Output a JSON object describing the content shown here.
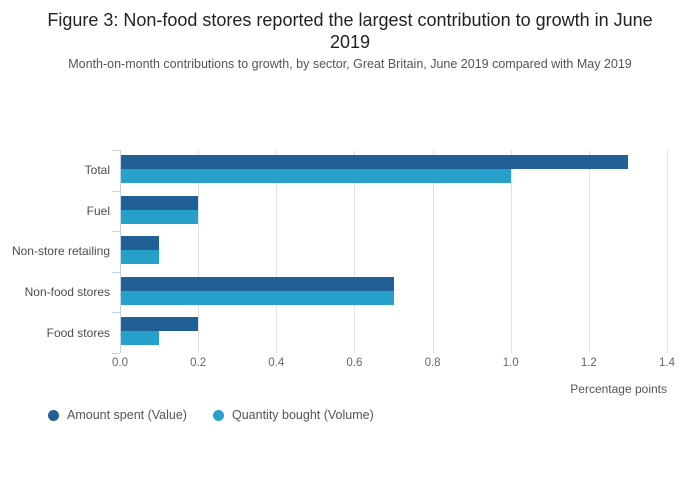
{
  "chart_data": {
    "type": "bar",
    "orientation": "horizontal",
    "title": "Figure 3: Non-food stores reported the largest contribution to growth in June 2019",
    "subtitle": "Month-on-month contributions to growth, by sector, Great Britain, June 2019 compared with May 2019",
    "categories": [
      "Total",
      "Fuel",
      "Non-store retailing",
      "Non-food stores",
      "Food stores"
    ],
    "series": [
      {
        "name": "Amount spent (Value)",
        "color": "#206095",
        "values": [
          1.3,
          0.2,
          0.1,
          0.7,
          0.2
        ]
      },
      {
        "name": "Quantity bought (Volume)",
        "color": "#27a0cc",
        "values": [
          1.0,
          0.2,
          0.1,
          0.7,
          0.1
        ]
      }
    ],
    "xlabel": "Percentage points",
    "xlim": [
      0,
      1.4
    ],
    "xticks": [
      0,
      0.2,
      0.4,
      0.6,
      0.8,
      1.0,
      1.2,
      1.4
    ],
    "grid": "vertical-only",
    "legend_position": "bottom-left"
  },
  "colors": {
    "gridline": "#e2e2e2",
    "axis": "#c6d3e2",
    "title_text": "#222222",
    "subtitle_text": "#555555",
    "category_text": "#4d4d4d",
    "tick_text": "#666666"
  }
}
